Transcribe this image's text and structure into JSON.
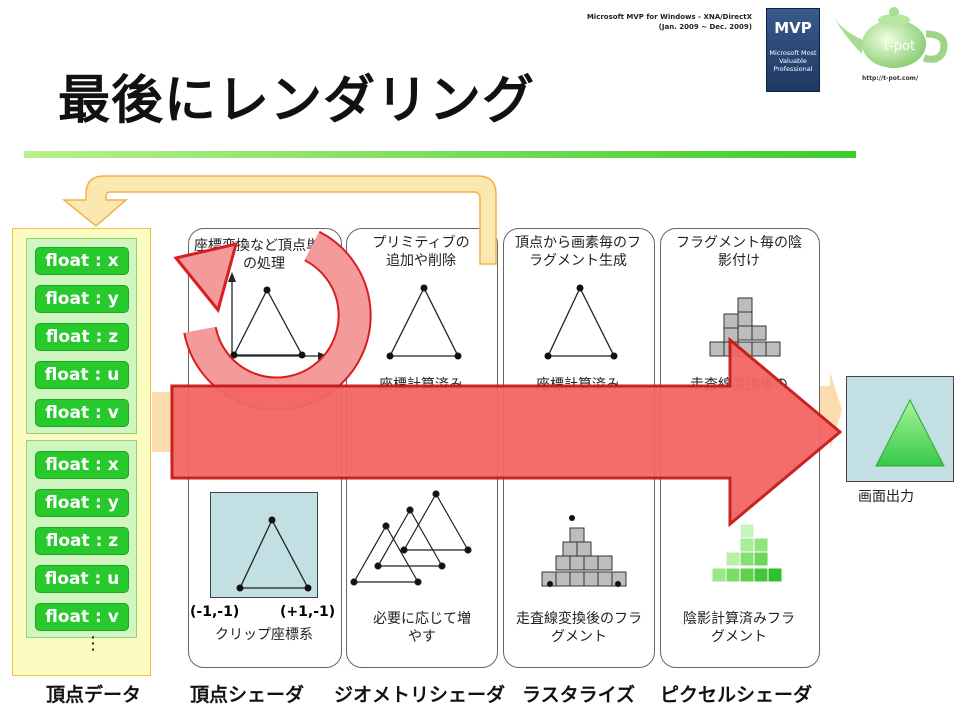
{
  "slide": {
    "title": "最後にレンダリング"
  },
  "mvp": {
    "line1": "Microsoft MVP for Windows - XNA/DirectX",
    "line2": "(Jan. 2009 ~ Dec. 2009)",
    "badge_big": "MVP",
    "badge_small": "Microsoft Most Valuable Professional",
    "url": "http://t-pot.com/"
  },
  "vertex_data": {
    "groups": [
      {
        "fields": [
          "float : x",
          "float : y",
          "float : z",
          "float : u",
          "float : v"
        ]
      },
      {
        "fields": [
          "float : x",
          "float : y",
          "float : z",
          "float : u",
          "float : v"
        ]
      }
    ],
    "more": "⋮"
  },
  "stages": {
    "vertex_shader": {
      "top_text": "座標変換など頂点単位の処理",
      "clip_label": "クリップ座標系",
      "coord_left": "(-1,-1)",
      "coord_right": "(+1,-1)"
    },
    "geometry_shader": {
      "top_text": "プリミティブの追加や削除",
      "mid_text": "座標計算済み",
      "bottom_text": "必要に応じて増やす"
    },
    "rasterizer": {
      "top_text": "頂点から画素毎のフラグメント生成",
      "mid_text": "座標計算済み",
      "bottom_text": "走査線変換後のフラグメント"
    },
    "pixel_shader": {
      "top_text": "フラグメント毎の陰影付け",
      "mid_text": "走査線変換後の",
      "bottom_text": "陰影計算済みフラグメント"
    }
  },
  "output": {
    "label": "画面出力"
  },
  "bottom_labels": [
    "頂点データ",
    "頂点シェーダ",
    "ジオメトリシェーダ",
    "ラスタライズ",
    "ピクセルシェーダ"
  ],
  "colors": {
    "accent_green": "#28c92c",
    "arrow_red": "#f04a4a",
    "arrow_pink": "#f6a3a3",
    "feedback_orange": "#f7b74a"
  }
}
